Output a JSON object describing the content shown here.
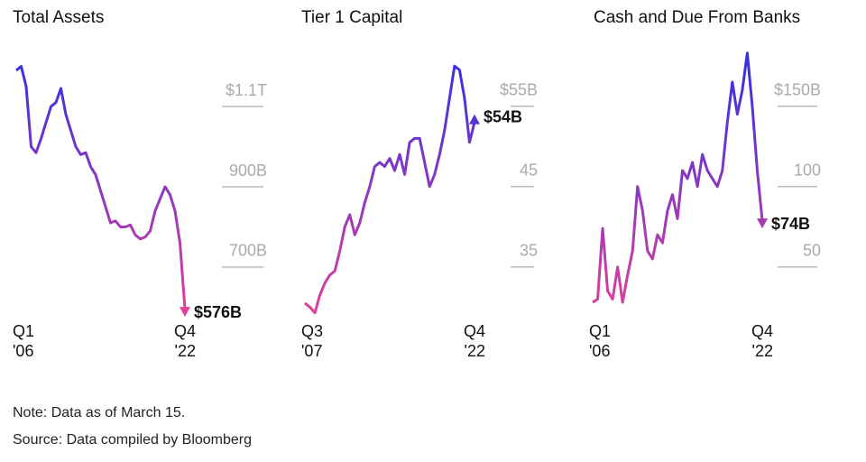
{
  "chart_data": [
    {
      "type": "line",
      "title": "Total Assets",
      "categories": [
        "Q1 '06",
        null,
        null,
        null,
        null,
        null,
        null,
        null,
        null,
        null,
        null,
        null,
        null,
        null,
        null,
        null,
        null,
        null,
        null,
        null,
        null,
        null,
        null,
        null,
        null,
        null,
        null,
        null,
        null,
        null,
        null,
        null,
        null,
        null,
        "Q4 '22"
      ],
      "values": [
        1190,
        1200,
        1150,
        1000,
        985,
        1020,
        1060,
        1100,
        1110,
        1145,
        1080,
        1040,
        1000,
        980,
        985,
        950,
        930,
        890,
        850,
        810,
        815,
        800,
        800,
        805,
        780,
        770,
        775,
        790,
        840,
        870,
        900,
        880,
        840,
        760,
        576
      ],
      "end_label": "$576B",
      "ylim": [
        556,
        1253
      ],
      "yticks": [
        {
          "value": 1100,
          "label": "$1.1T"
        },
        {
          "value": 900,
          "label": "900B"
        },
        {
          "value": 700,
          "label": "700B"
        }
      ],
      "colors": {
        "high": "#2c2fe6",
        "low": "#e8409a"
      }
    },
    {
      "type": "line",
      "title": "Tier 1 Capital",
      "categories": [
        "Q3 '07",
        null,
        null,
        null,
        null,
        null,
        null,
        null,
        null,
        null,
        null,
        null,
        null,
        null,
        null,
        null,
        null,
        null,
        null,
        null,
        null,
        null,
        null,
        null,
        null,
        null,
        null,
        null,
        null,
        null,
        null,
        null,
        null,
        null,
        "Q4 '22"
      ],
      "values": [
        30.5,
        30,
        29.3,
        31.5,
        33,
        34,
        34.5,
        37,
        40,
        41.5,
        39,
        40.5,
        43,
        45,
        47.5,
        48,
        47.5,
        48.5,
        47,
        49,
        46.5,
        50.5,
        51,
        51,
        48,
        45,
        46.5,
        49,
        52,
        56,
        60,
        59.5,
        56,
        50.5,
        54
      ],
      "end_label": "$54B",
      "ylim": [
        27.8,
        62.6
      ],
      "yticks": [
        {
          "value": 55,
          "label": "$55B"
        },
        45,
        35
      ],
      "colors": {
        "high": "#2c2fe6",
        "low": "#e8409a"
      }
    },
    {
      "type": "line",
      "title": "Cash and Due From Banks",
      "categories": [
        "Q1 '06",
        null,
        null,
        null,
        null,
        null,
        null,
        null,
        null,
        null,
        null,
        null,
        null,
        null,
        null,
        null,
        null,
        null,
        null,
        null,
        null,
        null,
        null,
        null,
        null,
        null,
        null,
        null,
        null,
        null,
        null,
        null,
        null,
        null,
        "Q4 '22"
      ],
      "values": [
        28,
        30,
        74,
        35,
        30,
        50,
        28,
        45,
        60,
        100,
        85,
        60,
        55,
        70,
        65,
        85,
        95,
        80,
        110,
        105,
        115,
        100,
        120,
        110,
        105,
        100,
        110,
        140,
        165,
        145,
        160,
        183,
        150,
        110,
        74
      ],
      "end_label": "$74B",
      "ylim": [
        14,
        188
      ],
      "yticks": [
        {
          "value": 150,
          "label": "$150B"
        },
        100,
        50
      ],
      "colors": {
        "high": "#2c2fe6",
        "low": "#e8409a"
      }
    }
  ],
  "notes": {
    "note": "Note: Data as of March 15.",
    "source": "Source: Data compiled by Bloomberg"
  }
}
